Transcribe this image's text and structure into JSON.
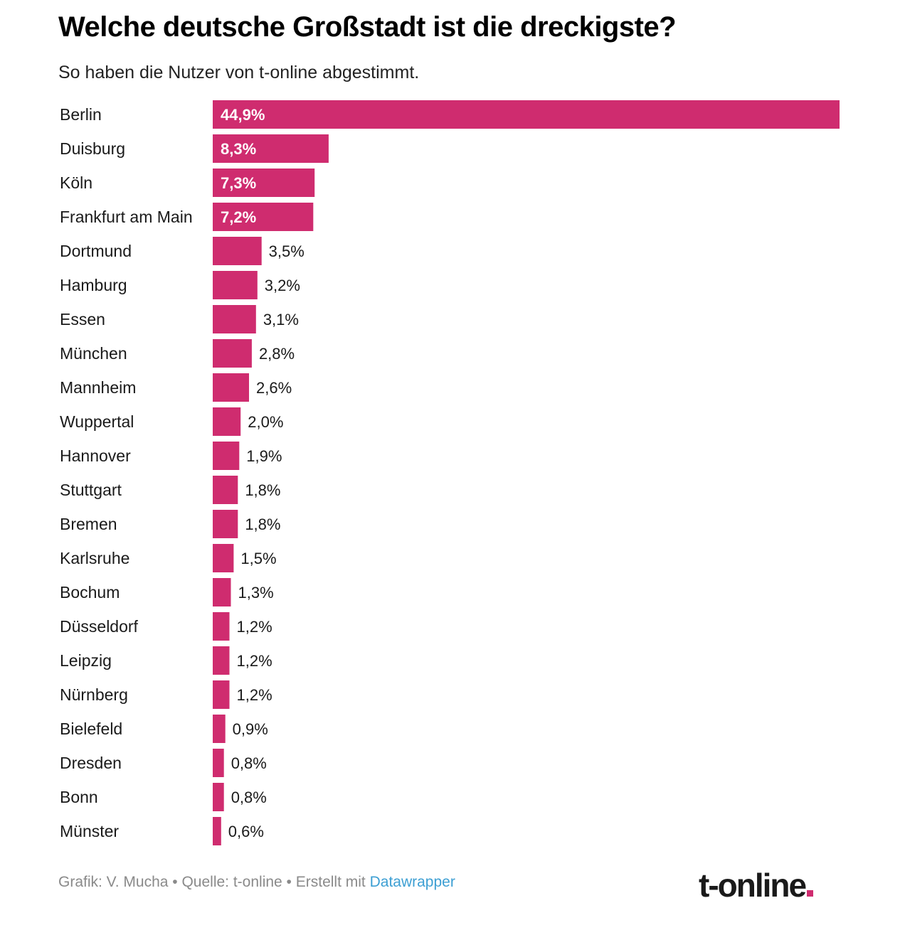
{
  "header": {
    "title": "Welche deutsche Großstadt ist die dreckigste?",
    "subtitle": "So haben die Nutzer von t-online abgestimmt."
  },
  "colors": {
    "bar": "#cf2c6f",
    "label_inside": "#ffffff",
    "label_outside": "#1a1a1a"
  },
  "chart_data": {
    "type": "bar",
    "orientation": "horizontal",
    "title": "Welche deutsche Großstadt ist die dreckigste?",
    "subtitle": "So haben die Nutzer von t-online abgestimmt.",
    "xlabel": "",
    "ylabel": "",
    "xlim": [
      0,
      44.9
    ],
    "unit": "%",
    "categories": [
      "Berlin",
      "Duisburg",
      "Köln",
      "Frankfurt am Main",
      "Dortmund",
      "Hamburg",
      "Essen",
      "München",
      "Mannheim",
      "Wuppertal",
      "Hannover",
      "Stuttgart",
      "Bremen",
      "Karlsruhe",
      "Bochum",
      "Düsseldorf",
      "Leipzig",
      "Nürnberg",
      "Bielefeld",
      "Dresden",
      "Bonn",
      "Münster"
    ],
    "values": [
      44.9,
      8.3,
      7.3,
      7.2,
      3.5,
      3.2,
      3.1,
      2.8,
      2.6,
      2.0,
      1.9,
      1.8,
      1.8,
      1.5,
      1.3,
      1.2,
      1.2,
      1.2,
      0.9,
      0.8,
      0.8,
      0.6
    ],
    "value_labels": [
      "44,9%",
      "8,3%",
      "7,3%",
      "7,2%",
      "3,5%",
      "3,2%",
      "3,1%",
      "2,8%",
      "2,6%",
      "2,0%",
      "1,9%",
      "1,8%",
      "1,8%",
      "1,5%",
      "1,3%",
      "1,2%",
      "1,2%",
      "1,2%",
      "0,9%",
      "0,8%",
      "0,8%",
      "0,6%"
    ]
  },
  "footer": {
    "credit_prefix": "Grafik: V. Mucha • Quelle: t-online • Erstellt mit ",
    "credit_link": "Datawrapper",
    "logo_text": "t-online"
  }
}
